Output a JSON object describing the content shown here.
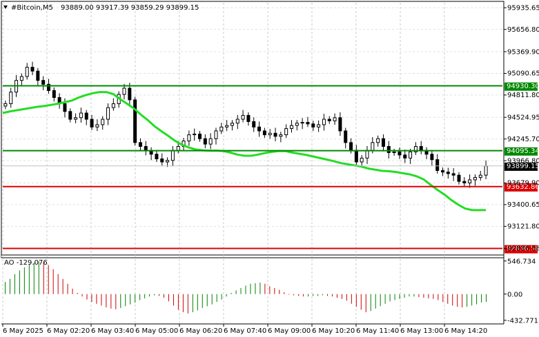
{
  "header": {
    "symbol": "#Bitcoin,M5",
    "ohlc": "93889.00 93917.39 93859.29 93899.15"
  },
  "ao_header": {
    "label": "AO -129.076"
  },
  "colors": {
    "ma_line": "#22dd22",
    "resistance_lines": "#008800",
    "support_lines": "#dd0000",
    "current_price_tag": "#000000",
    "ao_up": "#008000",
    "ao_down": "#cc0000"
  },
  "price_axis": {
    "ticks": [
      "95935.65",
      "95656.80",
      "95369.90",
      "95090.65",
      "94811.80",
      "94524.95",
      "94245.70",
      "93966.80",
      "93679.90",
      "93400.65",
      "93121.80",
      "92836.58"
    ]
  },
  "ao_axis": {
    "ticks": [
      "546.734",
      "0.00",
      "-432.771"
    ]
  },
  "time_axis": {
    "labels": [
      "6 May 2025",
      "6 May 02:20",
      "6 May 03:40",
      "6 May 05:00",
      "6 May 06:20",
      "6 May 07:40",
      "6 May 09:00",
      "6 May 10:20",
      "6 May 11:40",
      "6 May 13:00",
      "6 May 14:20"
    ]
  },
  "price_tags": [
    {
      "value": "94930.30",
      "color": "#008800",
      "kind": "resistance"
    },
    {
      "value": "94095.34",
      "color": "#008800",
      "kind": "resistance"
    },
    {
      "value": "93899.15",
      "color": "#000000",
      "kind": "current"
    },
    {
      "value": "93632.86",
      "color": "#dd0000",
      "kind": "support"
    },
    {
      "value": "92836.58",
      "color": "#dd0000",
      "kind": "support"
    }
  ],
  "chart_data": {
    "type": "line",
    "price_range": [
      92770,
      96000
    ],
    "ao_range": [
      -470,
      600
    ],
    "ma_series": {
      "x_index": [
        0,
        10,
        20,
        30,
        40,
        50,
        60,
        70,
        80,
        90,
        100,
        110,
        120,
        130,
        140,
        150,
        160,
        170,
        180,
        190,
        200,
        210,
        220,
        230,
        240,
        250,
        260,
        270,
        280,
        290,
        300,
        310,
        320,
        330,
        340,
        350,
        360,
        370,
        380,
        390,
        400,
        410,
        420,
        430,
        440,
        450,
        460,
        470,
        480,
        490,
        500,
        510,
        520,
        530,
        540,
        550,
        560,
        570,
        580,
        590,
        600,
        610,
        620,
        630,
        640,
        650,
        660,
        670,
        680,
        690,
        700
      ],
      "values": [
        94580,
        94600,
        94615,
        94630,
        94645,
        94660,
        94670,
        94685,
        94700,
        94720,
        94740,
        94780,
        94810,
        94835,
        94850,
        94850,
        94825,
        94760,
        94700,
        94640,
        94560,
        94490,
        94410,
        94345,
        94285,
        94220,
        94170,
        94135,
        94110,
        94100,
        94095,
        94095,
        94090,
        94070,
        94045,
        94030,
        94030,
        94045,
        94065,
        94080,
        94090,
        94090,
        94070,
        94055,
        94040,
        94020,
        94000,
        93980,
        93960,
        93935,
        93920,
        93905,
        93890,
        93865,
        93850,
        93835,
        93830,
        93820,
        93805,
        93790,
        93765,
        93725,
        93655,
        93590,
        93530,
        93460,
        93400,
        93350,
        93330,
        93330,
        93330
      ]
    },
    "candles": [
      94700,
      94850,
      95000,
      95050,
      95170,
      95120,
      95000,
      94950,
      94870,
      94780,
      94700,
      94600,
      94500,
      94520,
      94580,
      94500,
      94400,
      94430,
      94500,
      94650,
      94700,
      94820,
      94900,
      94750,
      94200,
      94150,
      94100,
      94050,
      93990,
      93950,
      93970,
      94100,
      94150,
      94220,
      94300,
      94310,
      94250,
      94180,
      94250,
      94350,
      94400,
      94420,
      94450,
      94500,
      94550,
      94470,
      94400,
      94350,
      94300,
      94320,
      94280,
      94300,
      94380,
      94420,
      94450,
      94460,
      94440,
      94400,
      94430,
      94500,
      94480,
      94520,
      94350,
      94200,
      94100,
      93950,
      94000,
      94100,
      94200,
      94250,
      94150,
      94070,
      94080,
      94040,
      94000,
      94080,
      94150,
      94100,
      94050,
      93980,
      93840,
      93820,
      93800,
      93780,
      93700,
      93680,
      93720,
      93750,
      93780,
      93899
    ],
    "ao_values": [
      200,
      250,
      330,
      390,
      440,
      490,
      520,
      540,
      520,
      480,
      410,
      330,
      250,
      170,
      90,
      20,
      -40,
      -90,
      -130,
      -160,
      -190,
      -220,
      -240,
      -250,
      -230,
      -200,
      -170,
      -140,
      -100,
      -70,
      -40,
      -20,
      -30,
      -60,
      -120,
      -190,
      -260,
      -300,
      -320,
      -300,
      -270,
      -230,
      -200,
      -170,
      -130,
      -90,
      -40,
      20,
      60,
      100,
      140,
      170,
      180,
      190,
      170,
      130,
      100,
      70,
      30,
      -10,
      -20,
      -30,
      -40,
      -40,
      -30,
      -30,
      -20,
      -30,
      -40,
      -60,
      -80,
      -110,
      -160,
      -210,
      -260,
      -300,
      -280,
      -240,
      -200,
      -160,
      -120,
      -100,
      -80,
      -60,
      -40,
      -40,
      -50,
      -60,
      -70,
      -80,
      -100,
      -130,
      -160,
      -190,
      -210,
      -220,
      -210,
      -190,
      -170,
      -140,
      -129
    ]
  }
}
